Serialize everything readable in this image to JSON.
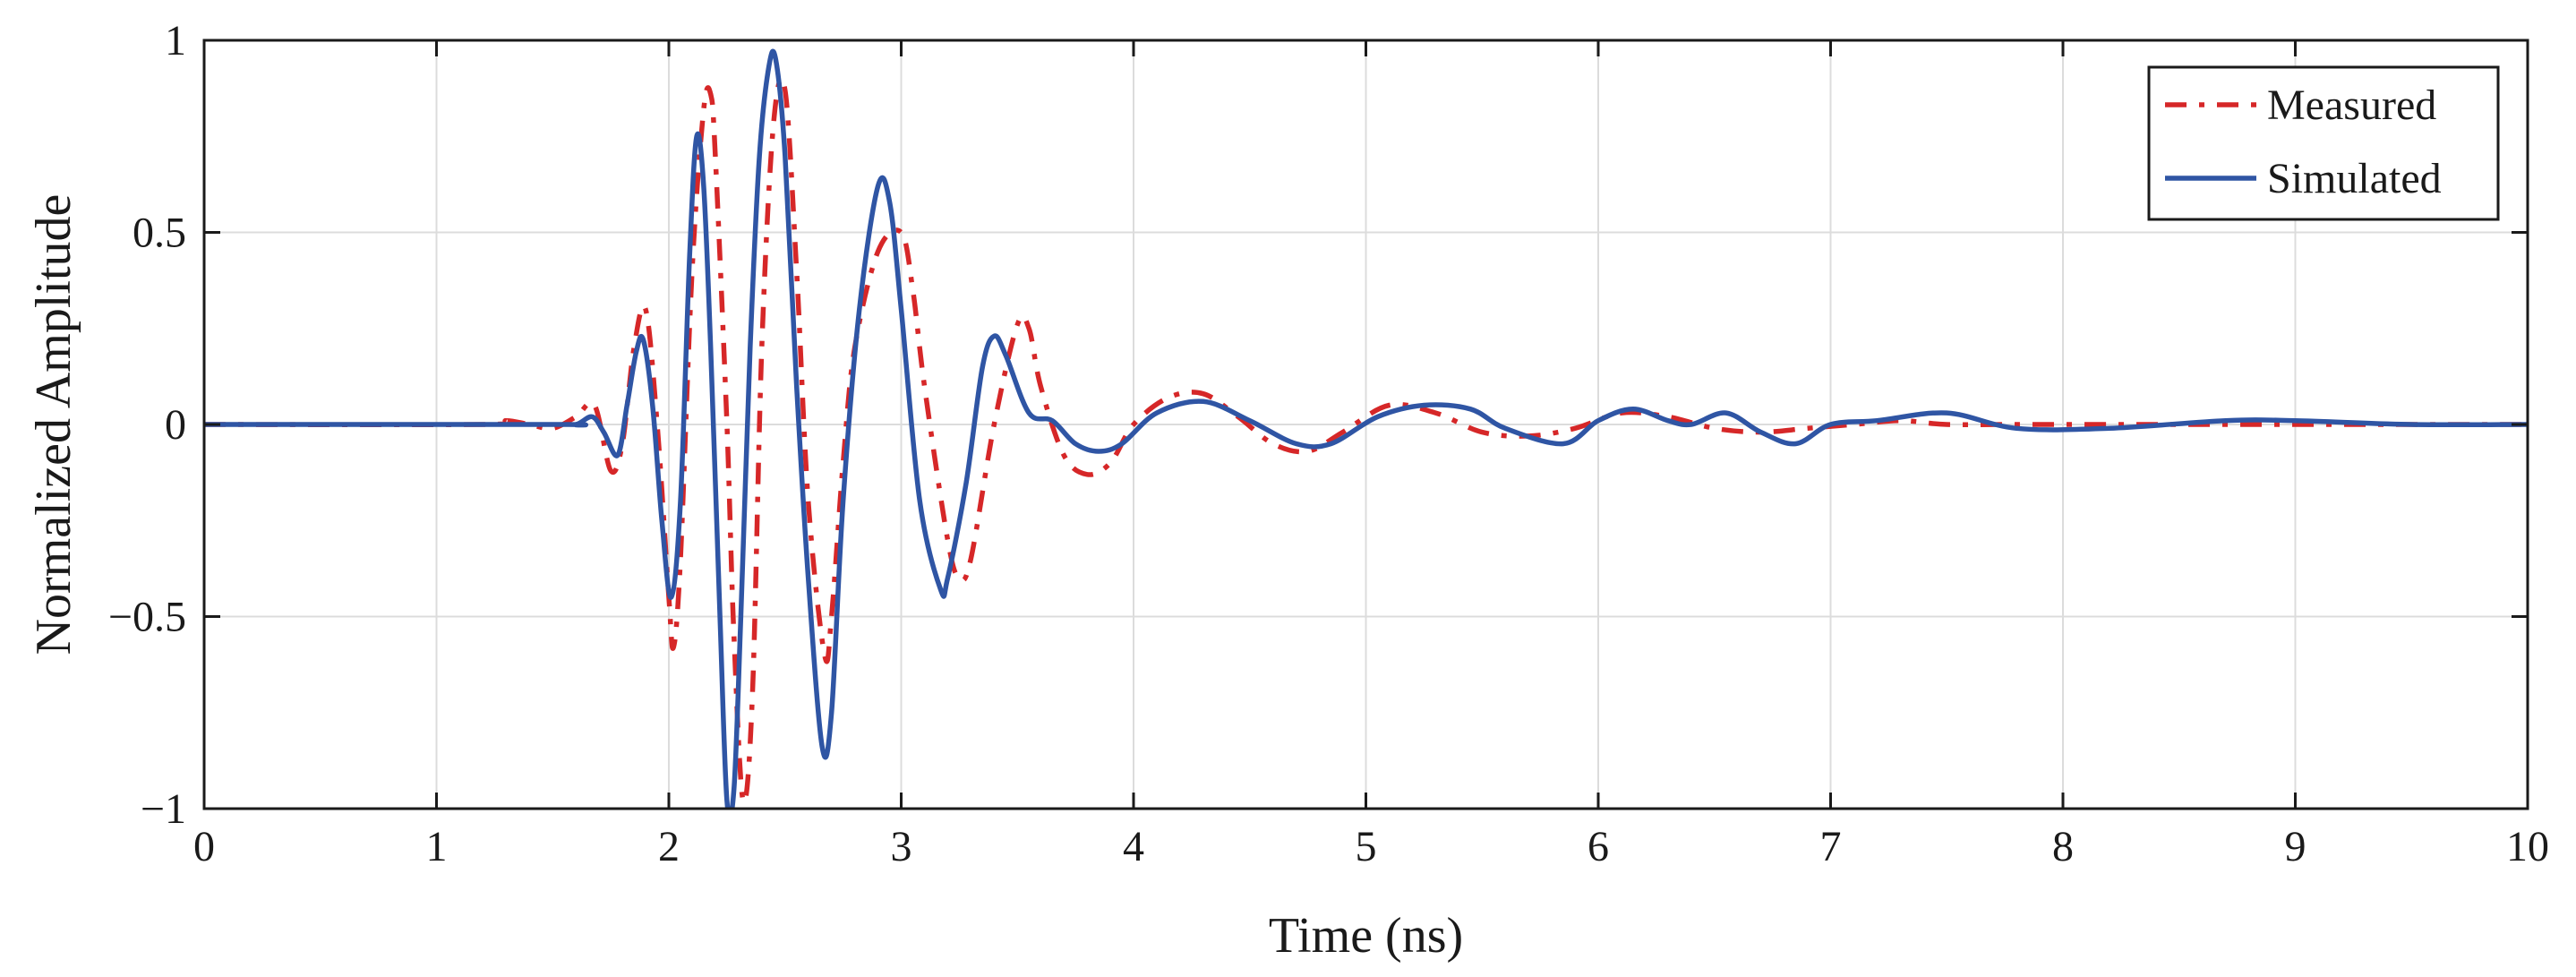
{
  "chart_data": {
    "type": "line",
    "title": "",
    "xlabel": "Time (ns)",
    "ylabel": "Normalized Amplitude",
    "xlim": [
      0,
      10
    ],
    "ylim": [
      -1,
      1
    ],
    "xticks": [
      0,
      1,
      2,
      3,
      4,
      5,
      6,
      7,
      8,
      9,
      10
    ],
    "xtick_labels": [
      "0",
      "1",
      "2",
      "3",
      "4",
      "5",
      "6",
      "7",
      "8",
      "9",
      "10"
    ],
    "yticks": [
      1,
      0.5,
      0,
      -0.5,
      -1
    ],
    "ytick_labels": [
      "1",
      "0.5",
      "0",
      "−0.5",
      "−1"
    ],
    "grid": true,
    "legend_position": "top-right",
    "series": [
      {
        "name": "Measured",
        "color": "#d62728",
        "line_style": "dash-dot",
        "x": [
          0.0,
          1.2,
          1.3,
          1.4,
          1.5,
          1.6,
          1.68,
          1.75,
          1.8,
          1.85,
          1.9,
          1.95,
          2.0,
          2.02,
          2.05,
          2.1,
          2.15,
          2.18,
          2.2,
          2.25,
          2.28,
          2.32,
          2.36,
          2.4,
          2.45,
          2.5,
          2.55,
          2.6,
          2.67,
          2.7,
          2.75,
          2.8,
          2.9,
          3.0,
          3.05,
          3.1,
          3.2,
          3.25,
          3.3,
          3.4,
          3.5,
          3.55,
          3.6,
          3.7,
          3.8,
          3.9,
          4.0,
          4.15,
          4.3,
          4.45,
          4.6,
          4.75,
          4.9,
          5.1,
          5.3,
          5.5,
          5.7,
          5.9,
          6.1,
          6.3,
          6.5,
          6.7,
          6.9,
          7.1,
          7.3,
          7.5,
          7.8,
          8.2,
          8.6,
          9.0,
          9.4,
          9.8,
          10.0
        ],
        "y": [
          0.0,
          0.0,
          0.01,
          0.0,
          -0.01,
          0.02,
          0.05,
          -0.12,
          -0.05,
          0.2,
          0.3,
          0.0,
          -0.45,
          -0.58,
          -0.35,
          0.4,
          0.82,
          0.86,
          0.7,
          0.0,
          -0.55,
          -0.98,
          -0.7,
          0.2,
          0.78,
          0.87,
          0.4,
          -0.2,
          -0.6,
          -0.5,
          -0.1,
          0.2,
          0.45,
          0.5,
          0.35,
          0.1,
          -0.3,
          -0.4,
          -0.35,
          0.0,
          0.26,
          0.25,
          0.1,
          -0.08,
          -0.13,
          -0.1,
          0.0,
          0.07,
          0.08,
          0.02,
          -0.05,
          -0.07,
          -0.02,
          0.05,
          0.03,
          -0.02,
          -0.03,
          -0.01,
          0.03,
          0.02,
          -0.01,
          -0.02,
          -0.01,
          0.0,
          0.01,
          0.0,
          0.0,
          0.0,
          0.0,
          0.0,
          0.0,
          0.0,
          0.0
        ]
      },
      {
        "name": "Simulated",
        "color": "#2f55a4",
        "line_style": "solid",
        "x": [
          0.0,
          1.5,
          1.6,
          1.67,
          1.72,
          1.78,
          1.82,
          1.86,
          1.89,
          1.93,
          1.97,
          2.01,
          2.05,
          2.09,
          2.12,
          2.15,
          2.18,
          2.22,
          2.25,
          2.28,
          2.31,
          2.35,
          2.39,
          2.43,
          2.46,
          2.5,
          2.55,
          2.6,
          2.66,
          2.7,
          2.75,
          2.82,
          2.9,
          2.95,
          3.0,
          3.08,
          3.17,
          3.2,
          3.28,
          3.35,
          3.4,
          3.45,
          3.55,
          3.65,
          3.75,
          3.85,
          3.95,
          4.1,
          4.3,
          4.5,
          4.7,
          4.85,
          5.05,
          5.25,
          5.45,
          5.6,
          5.85,
          6.0,
          6.15,
          6.3,
          6.4,
          6.55,
          6.7,
          6.85,
          7.0,
          7.2,
          7.5,
          7.8,
          8.2,
          8.7,
          9.0,
          9.5,
          10.0
        ],
        "y": [
          0.0,
          0.0,
          0.0,
          0.02,
          -0.02,
          -0.08,
          0.05,
          0.19,
          0.22,
          0.05,
          -0.25,
          -0.45,
          -0.2,
          0.45,
          0.75,
          0.62,
          0.2,
          -0.5,
          -0.98,
          -0.95,
          -0.5,
          0.2,
          0.7,
          0.93,
          0.95,
          0.7,
          0.1,
          -0.4,
          -0.84,
          -0.75,
          -0.2,
          0.3,
          0.62,
          0.58,
          0.3,
          -0.2,
          -0.43,
          -0.4,
          -0.15,
          0.15,
          0.23,
          0.18,
          0.03,
          0.01,
          -0.05,
          -0.07,
          -0.05,
          0.03,
          0.06,
          0.01,
          -0.05,
          -0.05,
          0.02,
          0.05,
          0.04,
          -0.01,
          -0.05,
          0.01,
          0.04,
          0.01,
          0.0,
          0.03,
          -0.02,
          -0.05,
          0.0,
          0.01,
          0.03,
          -0.01,
          -0.01,
          0.01,
          0.01,
          0.0,
          0.0
        ]
      }
    ]
  }
}
